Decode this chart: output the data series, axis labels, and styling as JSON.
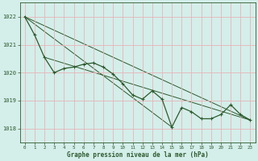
{
  "background_color": "#d4eeea",
  "plot_bg_color": "#d4eeea",
  "grid_color": "#e8b4b8",
  "line_color": "#2d5a2d",
  "xlabel": "Graphe pression niveau de la mer (hPa)",
  "ylim": [
    1017.5,
    1022.5
  ],
  "xlim": [
    -0.5,
    23.5
  ],
  "yticks": [
    1018,
    1019,
    1020,
    1021,
    1022
  ],
  "xticks": [
    0,
    1,
    2,
    3,
    4,
    5,
    6,
    7,
    8,
    9,
    10,
    11,
    12,
    13,
    14,
    15,
    16,
    17,
    18,
    19,
    20,
    21,
    22,
    23
  ],
  "series": {
    "main": {
      "x": [
        0,
        1,
        2,
        3,
        4,
        5,
        6,
        7,
        8,
        9,
        10,
        11,
        12,
        13,
        14,
        15,
        16,
        17,
        18,
        19,
        20,
        21,
        22,
        23
      ],
      "y": [
        1022.0,
        1021.35,
        1020.55,
        1020.0,
        1020.15,
        1020.2,
        1020.3,
        1020.35,
        1020.2,
        1019.95,
        1019.6,
        1019.2,
        1019.05,
        1019.35,
        1019.05,
        1018.05,
        1018.75,
        1018.6,
        1018.35,
        1018.35,
        1018.5,
        1018.85,
        1018.5,
        1018.3
      ]
    },
    "trend1": {
      "x": [
        0,
        23
      ],
      "y": [
        1022.0,
        1018.3
      ]
    },
    "trend2": {
      "x": [
        2,
        23
      ],
      "y": [
        1020.55,
        1018.3
      ]
    },
    "trend3": {
      "x": [
        0,
        15
      ],
      "y": [
        1022.0,
        1018.05
      ]
    }
  }
}
